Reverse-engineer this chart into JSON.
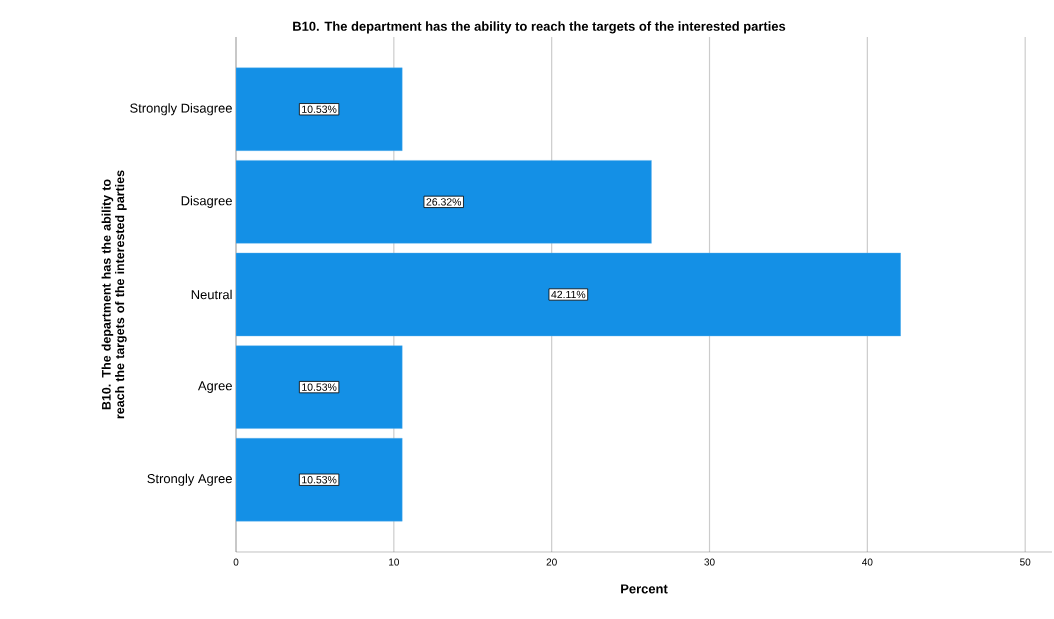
{
  "chart_data": {
    "type": "bar",
    "orientation": "horizontal",
    "title": "B10. The department has the ability to reach the targets of the interested parties",
    "xlabel": "Percent",
    "ylabel": "B10. The department has the ability to reach the targets of the interested parties",
    "categories": [
      "Strongly Disagree",
      "Disagree",
      "Neutral",
      "Agree",
      "Strongly Agree"
    ],
    "values": [
      10.53,
      26.32,
      42.11,
      10.53,
      10.53
    ],
    "value_labels": [
      "10.53%",
      "26.32%",
      "42.11%",
      "10.53%",
      "10.53%"
    ],
    "color": "#1490e6",
    "xlim": [
      0,
      51.7
    ],
    "xticks": [
      0,
      10,
      20,
      30,
      40,
      50
    ],
    "grid": "x"
  }
}
